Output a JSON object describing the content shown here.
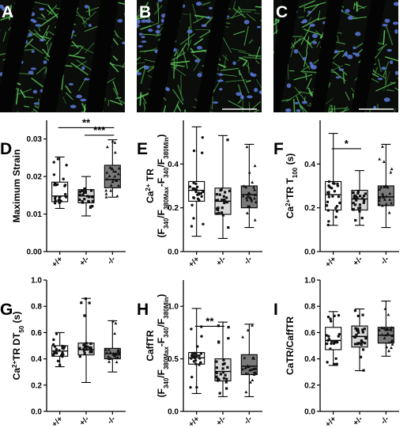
{
  "micrographs": [
    {
      "label": "A",
      "bg": "#0a0d0a"
    },
    {
      "label": "B",
      "bg": "#0a0d0a"
    },
    {
      "label": "C",
      "bg": "#0a0d0a"
    }
  ],
  "colors": {
    "membrane": "#5cc85a",
    "nuclei": "#5a78d8",
    "group_fill": [
      "#ffffff",
      "#d8d8d8",
      "#7a7a7a"
    ]
  },
  "chart_data": [
    {
      "panel": "D",
      "type": "box",
      "categories": [
        "+/+",
        "+/-",
        "-/-"
      ],
      "ylabel_parts": [
        {
          "t": "Maximum Strain"
        }
      ],
      "ylim": [
        0,
        0.035
      ],
      "yticks": [
        0.0,
        0.01,
        0.02,
        0.03
      ],
      "yticklabels": [
        "0.00",
        "0.01",
        "0.02",
        "0.03"
      ],
      "boxes": [
        {
          "min": 0.0115,
          "q1": 0.0133,
          "median": 0.0148,
          "q3": 0.0185,
          "max": 0.0252
        },
        {
          "min": 0.0095,
          "q1": 0.013,
          "median": 0.0148,
          "q3": 0.0165,
          "max": 0.02
        },
        {
          "min": 0.0145,
          "q1": 0.017,
          "median": 0.0192,
          "q3": 0.023,
          "max": 0.0298
        }
      ],
      "significance": [
        {
          "from": 0,
          "to": 2,
          "label": "**",
          "y": 0.033
        },
        {
          "from": 1,
          "to": 2,
          "label": "***",
          "y": 0.031
        }
      ]
    },
    {
      "panel": "E",
      "type": "box",
      "categories": [
        "+/+",
        "+/-",
        "-/-"
      ],
      "ylabel_parts": [
        {
          "t": "Ca"
        },
        {
          "t": "2+",
          "sup": true
        },
        {
          "t": " TR"
        }
      ],
      "ylabel2_parts": [
        {
          "t": "(F"
        },
        {
          "t": "340",
          "sub": true
        },
        {
          "t": "/F"
        },
        {
          "t": "380Max",
          "sub": true
        },
        {
          "t": "-F"
        },
        {
          "t": "340",
          "sub": true
        },
        {
          "t": "/F"
        },
        {
          "t": "380Min",
          "sub": true
        },
        {
          "t": ")"
        }
      ],
      "ylim": [
        0,
        0.6
      ],
      "yticks": [
        0.0,
        0.2,
        0.4
      ],
      "yticklabels": [
        "0.0",
        "0.2",
        "0.4"
      ],
      "boxes": [
        {
          "min": 0.07,
          "q1": 0.23,
          "median": 0.28,
          "q3": 0.32,
          "max": 0.57
        },
        {
          "min": 0.06,
          "q1": 0.17,
          "median": 0.23,
          "q3": 0.29,
          "max": 0.53
        },
        {
          "min": 0.11,
          "q1": 0.2,
          "median": 0.26,
          "q3": 0.3,
          "max": 0.49
        }
      ],
      "significance": []
    },
    {
      "panel": "F",
      "type": "box",
      "categories": [
        "+/+",
        "+/-",
        "-/-"
      ],
      "ylabel_parts": [
        {
          "t": "Ca"
        },
        {
          "t": "2+",
          "sup": true
        },
        {
          "t": "TR T"
        },
        {
          "t": "100",
          "sub": true
        },
        {
          "t": " (s)"
        }
      ],
      "ylim": [
        0,
        0.6
      ],
      "yticks": [
        0.0,
        0.2,
        0.4
      ],
      "yticklabels": [
        "0.0",
        "0.2",
        "0.4"
      ],
      "boxes": [
        {
          "min": 0.12,
          "q1": 0.19,
          "median": 0.26,
          "q3": 0.32,
          "max": 0.54
        },
        {
          "min": 0.12,
          "q1": 0.19,
          "median": 0.24,
          "q3": 0.28,
          "max": 0.37
        },
        {
          "min": 0.11,
          "q1": 0.21,
          "median": 0.25,
          "q3": 0.3,
          "max": 0.49
        }
      ],
      "significance": [
        {
          "from": 0,
          "to": 1,
          "label": "*",
          "y": 0.47
        }
      ]
    },
    {
      "panel": "G",
      "type": "box",
      "categories": [
        "+/+",
        "+/-",
        "-/-"
      ],
      "ylabel_parts": [
        {
          "t": "Ca"
        },
        {
          "t": "2+",
          "sup": true
        },
        {
          "t": "TR DT"
        },
        {
          "t": "50",
          "sub": true
        },
        {
          "t": " (s)"
        }
      ],
      "ylim": [
        0,
        1.0
      ],
      "yticks": [
        0.0,
        0.2,
        0.4,
        0.6,
        0.8,
        1.0
      ],
      "yticklabels": [
        "0.0",
        "0.2",
        "0.4",
        "0.6",
        "0.8",
        "1.0"
      ],
      "boxes": [
        {
          "min": 0.34,
          "q1": 0.42,
          "median": 0.46,
          "q3": 0.5,
          "max": 0.6
        },
        {
          "min": 0.22,
          "q1": 0.43,
          "median": 0.47,
          "q3": 0.52,
          "max": 0.86
        },
        {
          "min": 0.3,
          "q1": 0.4,
          "median": 0.44,
          "q3": 0.48,
          "max": 0.69
        }
      ],
      "significance": []
    },
    {
      "panel": "H",
      "type": "box",
      "categories": [
        "+/+",
        "+/-",
        "-/-"
      ],
      "ylabel_parts": [
        {
          "t": "CaffTR"
        }
      ],
      "ylabel2_parts": [
        {
          "t": "(F"
        },
        {
          "t": "340",
          "sub": true
        },
        {
          "t": "/F"
        },
        {
          "t": "380Max",
          "sub": true
        },
        {
          "t": "-F"
        },
        {
          "t": "340",
          "sub": true
        },
        {
          "t": "/F"
        },
        {
          "t": "380Min",
          "sub": true
        },
        {
          "t": ")"
        }
      ],
      "ylim": [
        0,
        1.25
      ],
      "yticks": [
        0.0,
        0.5,
        1.0
      ],
      "yticklabels": [
        "0.0",
        "0.5",
        "1.0"
      ],
      "boxes": [
        {
          "min": 0.17,
          "q1": 0.45,
          "median": 0.51,
          "q3": 0.56,
          "max": 0.98
        },
        {
          "min": 0.14,
          "q1": 0.29,
          "median": 0.38,
          "q3": 0.5,
          "max": 0.85
        },
        {
          "min": 0.14,
          "q1": 0.35,
          "median": 0.43,
          "q3": 0.54,
          "max": 0.83
        }
      ],
      "significance": [
        {
          "from": 0,
          "to": 1,
          "label": "**",
          "y": 0.81
        }
      ]
    },
    {
      "panel": "I",
      "type": "box",
      "categories": [
        "+/+",
        "+/-",
        "-/-"
      ],
      "ylabel_parts": [
        {
          "t": "CaTR/CaffTR"
        }
      ],
      "ylim": [
        0,
        1.0
      ],
      "yticks": [
        0.0,
        0.2,
        0.4,
        0.6,
        0.8,
        1.0
      ],
      "yticklabels": [
        "0.0",
        "0.2",
        "0.4",
        "0.6",
        "0.8",
        "1.0"
      ],
      "boxes": [
        {
          "min": 0.35,
          "q1": 0.47,
          "median": 0.54,
          "q3": 0.64,
          "max": 0.76
        },
        {
          "min": 0.31,
          "q1": 0.49,
          "median": 0.57,
          "q3": 0.65,
          "max": 0.78
        },
        {
          "min": 0.42,
          "q1": 0.52,
          "median": 0.58,
          "q3": 0.64,
          "max": 0.84
        }
      ],
      "significance": []
    }
  ]
}
